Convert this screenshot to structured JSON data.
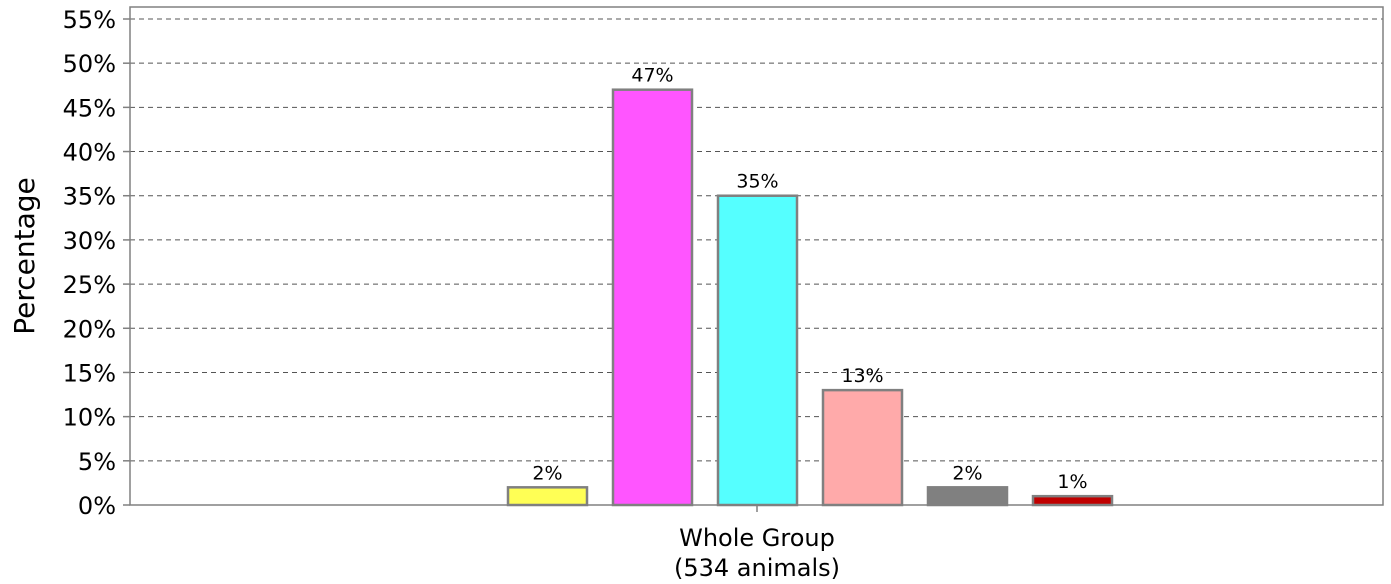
{
  "chart_data": {
    "type": "bar",
    "ylabel": "Percentage",
    "ylim": [
      0,
      55
    ],
    "ytick_step": 5,
    "ytick_suffix": "%",
    "grid": "horizontal dashed",
    "categories": [
      "Whole Group",
      "(534 animals)"
    ],
    "series": [
      {
        "value": 2,
        "label": "2%",
        "color": "#ffff55"
      },
      {
        "value": 47,
        "label": "47%",
        "color": "#ff55ff"
      },
      {
        "value": 35,
        "label": "35%",
        "color": "#55ffff"
      },
      {
        "value": 13,
        "label": "13%",
        "color": "#ffaaaa"
      },
      {
        "value": 2,
        "label": "2%",
        "color": "#808080"
      },
      {
        "value": 1,
        "label": "1%",
        "color": "#c00000"
      }
    ]
  }
}
